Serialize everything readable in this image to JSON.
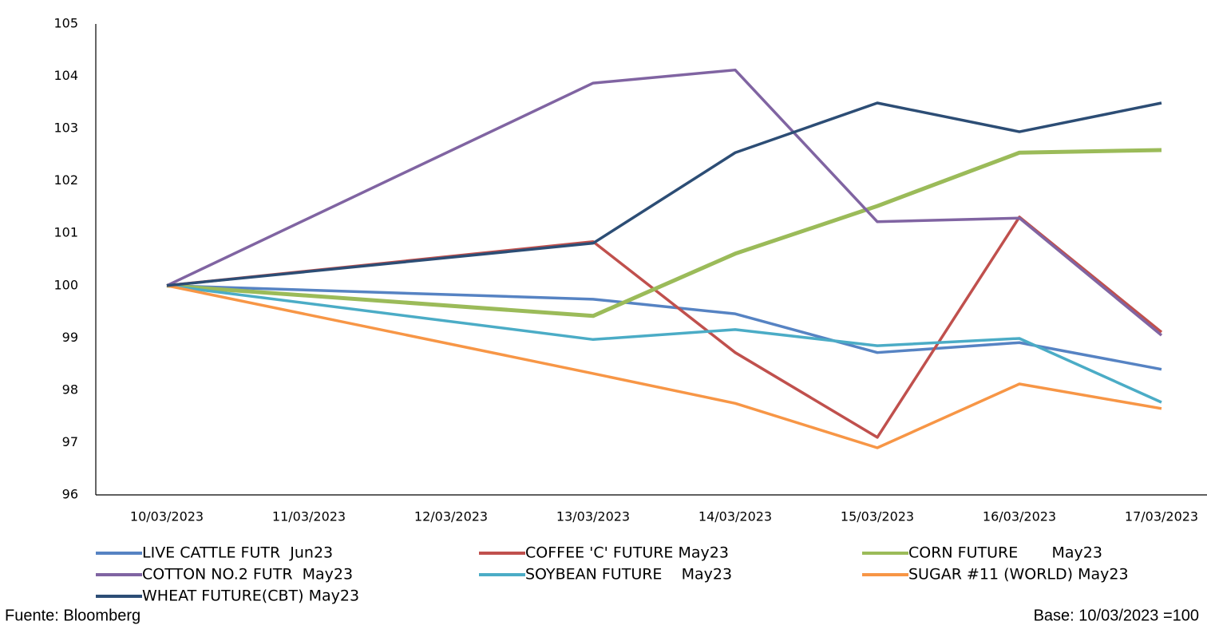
{
  "chart_data": {
    "type": "line",
    "xticks": [
      "10/03/2023",
      "11/03/2023",
      "12/03/2023",
      "13/03/2023",
      "14/03/2023",
      "15/03/2023",
      "16/03/2023",
      "17/03/2023"
    ],
    "x": [
      "10/03/2023",
      "13/03/2023",
      "14/03/2023",
      "15/03/2023",
      "16/03/2023",
      "17/03/2023"
    ],
    "ylim": [
      96,
      105
    ],
    "yticks": [
      96,
      97,
      98,
      99,
      100,
      101,
      102,
      103,
      104,
      105
    ],
    "series": [
      {
        "name": "LIVE CATTLE FUTR  Jun23",
        "color": "#5683c3",
        "values": [
          100,
          99.74,
          99.46,
          98.72,
          98.91,
          98.4
        ]
      },
      {
        "name": "COFFEE 'C' FUTURE May23",
        "color": "#c0504d",
        "values": [
          100,
          100.84,
          98.72,
          97.1,
          101.31,
          99.11
        ]
      },
      {
        "name": "CORN FUTURE       May23",
        "color": "#9bbb59",
        "values": [
          100,
          99.42,
          100.61,
          101.52,
          102.54,
          102.59
        ]
      },
      {
        "name": "COTTON NO.2 FUTR  May23",
        "color": "#8064a2",
        "values": [
          100,
          103.87,
          104.12,
          101.22,
          101.29,
          99.05
        ]
      },
      {
        "name": "SOYBEAN FUTURE    May23",
        "color": "#4bacc6",
        "values": [
          100,
          98.97,
          99.16,
          98.85,
          98.99,
          97.77
        ]
      },
      {
        "name": "SUGAR #11 (WORLD) May23",
        "color": "#f79646",
        "values": [
          100,
          98.32,
          97.75,
          96.9,
          98.12,
          97.65
        ]
      },
      {
        "name": "WHEAT FUTURE(CBT) May23",
        "color": "#2c4d75",
        "values": [
          100,
          100.81,
          102.54,
          103.49,
          102.94,
          103.49
        ]
      }
    ],
    "source": "Fuente: Bloomberg",
    "note": "Base: 10/03/2023 =100"
  }
}
